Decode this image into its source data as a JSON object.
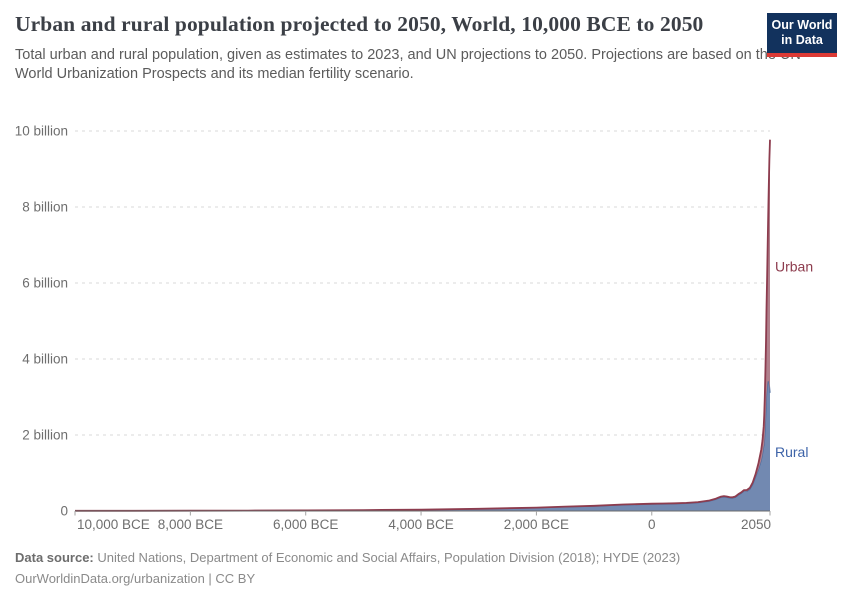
{
  "header": {
    "title": "Urban and rural population projected to 2050, World, 10,000 BCE to 2050",
    "subtitle": "Total urban and rural population, given as estimates to 2023, and UN projections to 2050. Projections are based on the UN World Urbanization Prospects and its median fertility scenario.",
    "logo": {
      "line1": "Our World",
      "line2": "in Data",
      "bg": "#12325d",
      "accent": "#dc3a35"
    }
  },
  "chart_data": {
    "type": "area",
    "stacked": true,
    "title": "Urban and rural population projected to 2050, World, 10,000 BCE to 2050",
    "xlabel": "",
    "ylabel": "",
    "xlim": [
      -10000,
      2050
    ],
    "ylim": [
      0,
      10
    ],
    "grid": "horizontal-dashed",
    "legend_position": "right-of-last-point",
    "units": "billion people",
    "x": [
      -10000,
      -9000,
      -8000,
      -7000,
      -6000,
      -5000,
      -4000,
      -3000,
      -2000,
      -1500,
      -1000,
      -500,
      0,
      200,
      400,
      600,
      800,
      1000,
      1100,
      1150,
      1200,
      1250,
      1300,
      1350,
      1400,
      1450,
      1500,
      1550,
      1600,
      1650,
      1700,
      1750,
      1800,
      1850,
      1900,
      1920,
      1940,
      1950,
      1960,
      1970,
      1980,
      1990,
      2000,
      2010,
      2023,
      2030,
      2040,
      2050
    ],
    "series": [
      {
        "name": "Rural",
        "color": "#4c6a9c",
        "fill": "#7289b1",
        "label_color": "#3d63a8",
        "stroke_width": 1.2,
        "values": [
          0.004,
          0.005,
          0.007,
          0.01,
          0.015,
          0.022,
          0.035,
          0.055,
          0.085,
          0.11,
          0.13,
          0.16,
          0.18,
          0.185,
          0.19,
          0.2,
          0.22,
          0.26,
          0.3,
          0.33,
          0.36,
          0.37,
          0.36,
          0.345,
          0.34,
          0.36,
          0.42,
          0.465,
          0.52,
          0.52,
          0.57,
          0.7,
          0.9,
          1.1,
          1.34,
          1.5,
          1.7,
          1.75,
          2.0,
          2.34,
          2.7,
          3.03,
          3.26,
          3.41,
          3.43,
          3.39,
          3.29,
          3.11
        ]
      },
      {
        "name": "Urban",
        "color": "#8d3c4e",
        "fill": "#b0808c",
        "label_color": "#8d3c4e",
        "stroke_width": 1.8,
        "values": [
          0,
          0,
          0,
          0.001,
          0.001,
          0.001,
          0.002,
          0.003,
          0.005,
          0.006,
          0.008,
          0.01,
          0.012,
          0.012,
          0.012,
          0.013,
          0.015,
          0.017,
          0.018,
          0.019,
          0.02,
          0.021,
          0.021,
          0.02,
          0.02,
          0.021,
          0.023,
          0.025,
          0.03,
          0.032,
          0.037,
          0.05,
          0.07,
          0.16,
          0.28,
          0.36,
          0.52,
          0.75,
          1.0,
          1.35,
          1.75,
          2.29,
          2.87,
          3.62,
          4.61,
          5.17,
          5.98,
          6.66
        ]
      }
    ],
    "x_ticks": [
      {
        "year": -10000,
        "label": "10,000 BCE"
      },
      {
        "year": -8000,
        "label": "8,000 BCE"
      },
      {
        "year": -6000,
        "label": "6,000 BCE"
      },
      {
        "year": -4000,
        "label": "4,000 BCE"
      },
      {
        "year": -2000,
        "label": "2,000 BCE"
      },
      {
        "year": 0,
        "label": "0"
      },
      {
        "year": 2050,
        "label": "2050"
      }
    ],
    "y_ticks": [
      {
        "value": 0,
        "label": "0"
      },
      {
        "value": 2,
        "label": "2 billion"
      },
      {
        "value": 4,
        "label": "4 billion"
      },
      {
        "value": 6,
        "label": "6 billion"
      },
      {
        "value": 8,
        "label": "8 billion"
      },
      {
        "value": 10,
        "label": "10 billion"
      }
    ]
  },
  "footer": {
    "source_label": "Data source:",
    "source_text": " United Nations, Department of Economic and Social Affairs, Population Division (2018); HYDE (2023)",
    "license_line": "OurWorldinData.org/urbanization | CC BY"
  }
}
